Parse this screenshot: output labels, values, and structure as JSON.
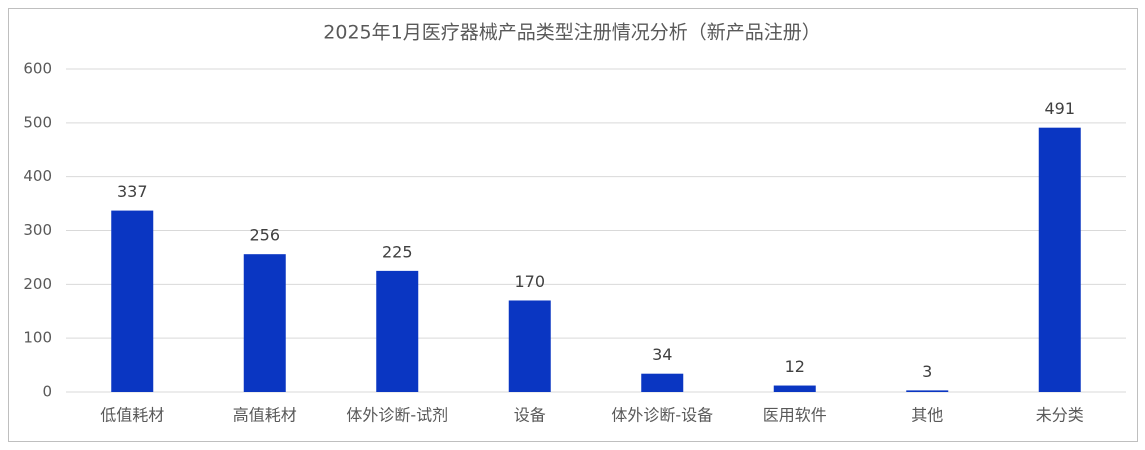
{
  "chart_data": {
    "type": "bar",
    "title": "2025年1月医疗器械产品类型注册情况分析（新产品注册）",
    "categories": [
      "低值耗材",
      "高值耗材",
      "体外诊断-试剂",
      "设备",
      "体外诊断-设备",
      "医用软件",
      "其他",
      "未分类"
    ],
    "values": [
      337,
      256,
      225,
      170,
      34,
      12,
      3,
      491
    ],
    "color": "#0a36c2",
    "ylim": [
      0,
      600
    ],
    "yticks": [
      0,
      100,
      200,
      300,
      400,
      500,
      600
    ],
    "grid": true
  }
}
